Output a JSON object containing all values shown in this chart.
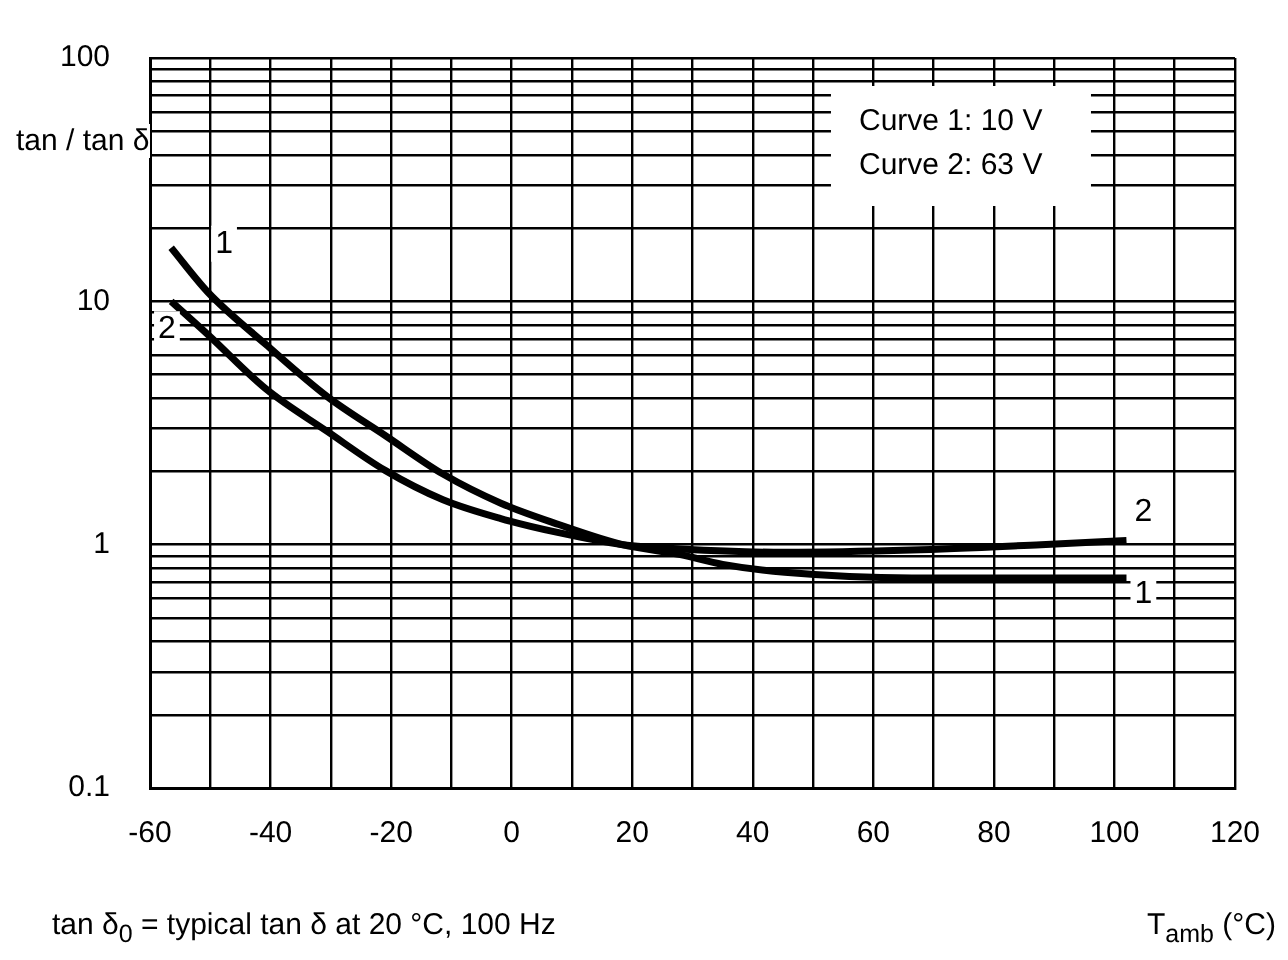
{
  "chart_data": {
    "type": "line",
    "ylabel": "tan / tan δ",
    "xlabel": "T$_{amb}$ (°C)",
    "annotations": [
      "Curve 1: 10 V",
      "Curve 2: 63 V",
      "tan δ$_{0}$ = typical tan δ at 20 °C, 100 Hz"
    ],
    "series": [
      {
        "name": "1",
        "color": "#000000",
        "x": [
          -56.5,
          -50.4,
          -40.8,
          -30.6,
          -21,
          -11.4,
          -1.8,
          7.8,
          18.4,
          28,
          35,
          45.3,
          66.4,
          102
        ],
        "values": [
          16.6,
          10.9,
          6.65,
          4.06,
          2.81,
          1.95,
          1.48,
          1.21,
          1.0,
          0.91,
          0.83,
          0.77,
          0.73,
          0.73
        ]
      },
      {
        "name": "2",
        "color": "#000000",
        "x": [
          -56.5,
          -50.4,
          -40.8,
          -30.6,
          -21,
          -11.4,
          -1.8,
          7.8,
          18.4,
          28,
          45.3,
          66.4,
          87.8,
          102
        ],
        "values": [
          10,
          7.3,
          4.37,
          2.92,
          2.02,
          1.53,
          1.28,
          1.12,
          1.0,
          0.96,
          0.93,
          0.95,
          1.0,
          1.04
        ]
      }
    ],
    "xlim": [
      -60,
      120
    ],
    "xticks": [
      -60,
      {
        "value": -50,
        "label": null
      },
      -40,
      {
        "value": -30,
        "label": null
      },
      -20,
      {
        "value": -10,
        "label": null
      },
      0,
      {
        "value": 10,
        "label": null
      },
      20,
      {
        "value": 30,
        "label": null
      },
      40,
      {
        "value": 50,
        "label": null
      },
      60,
      {
        "value": 70,
        "label": null
      },
      80,
      {
        "value": 90,
        "label": null
      },
      100,
      {
        "value": 110,
        "label": null
      },
      120
    ],
    "ylim": [
      0.1,
      100
    ],
    "yticks": [
      0.1,
      {
        "value": 0.2,
        "label": null
      },
      {
        "value": 0.3,
        "label": null
      },
      {
        "value": 0.4,
        "label": null
      },
      {
        "value": 0.5,
        "label": null
      },
      {
        "value": 0.6,
        "label": null
      },
      {
        "value": 0.7,
        "label": null
      },
      {
        "value": 0.8,
        "label": null
      },
      {
        "value": 0.9,
        "label": null
      },
      1,
      {
        "value": 2,
        "label": null
      },
      {
        "value": 3,
        "label": null
      },
      {
        "value": 4,
        "label": null
      },
      {
        "value": 5,
        "label": null
      },
      {
        "value": 6,
        "label": null
      },
      {
        "value": 7,
        "label": null
      },
      {
        "value": 8,
        "label": null
      },
      {
        "value": 9,
        "label": null
      },
      10,
      {
        "value": 20,
        "label": null
      },
      {
        "value": 30,
        "label": null
      },
      {
        "value": 40,
        "label": null
      },
      {
        "value": 50,
        "label": null
      },
      {
        "value": 60,
        "label": null
      },
      {
        "value": 70,
        "label": null
      },
      {
        "value": 80,
        "label": null
      },
      {
        "value": 90,
        "label": null
      },
      100
    ],
    "log": "y",
    "grid": true,
    "legend": false,
    "marker": "none",
    "line_style": "solid"
  }
}
